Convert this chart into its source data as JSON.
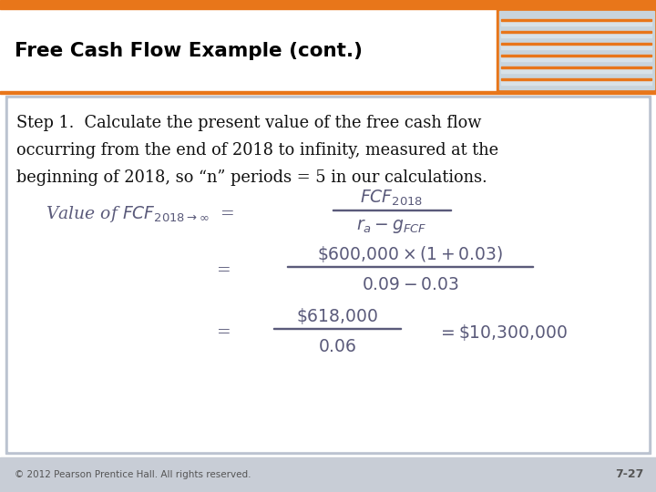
{
  "title": "Free Cash Flow Example (cont.)",
  "title_color": "#000000",
  "top_bar_color": "#E8761A",
  "bottom_bar_color": "#C8CDD6",
  "body_line1": "Step 1.  Calculate the present value of the free cash flow",
  "body_line2": "occurring from the end of 2018 to infinity, measured at the",
  "body_line3": "beginning of 2018, so “n” periods = 5 in our calculations.",
  "body_text_color": "#111111",
  "footer_text": "© 2012 Pearson Prentice Hall. All rights reserved.",
  "footer_right": "7-27",
  "footer_color": "#555555",
  "formula_color": "#5A5A7A",
  "slide_bg": "#FFFFFF",
  "header_line_color": "#E8761A",
  "border_color": "#BBC3D0"
}
